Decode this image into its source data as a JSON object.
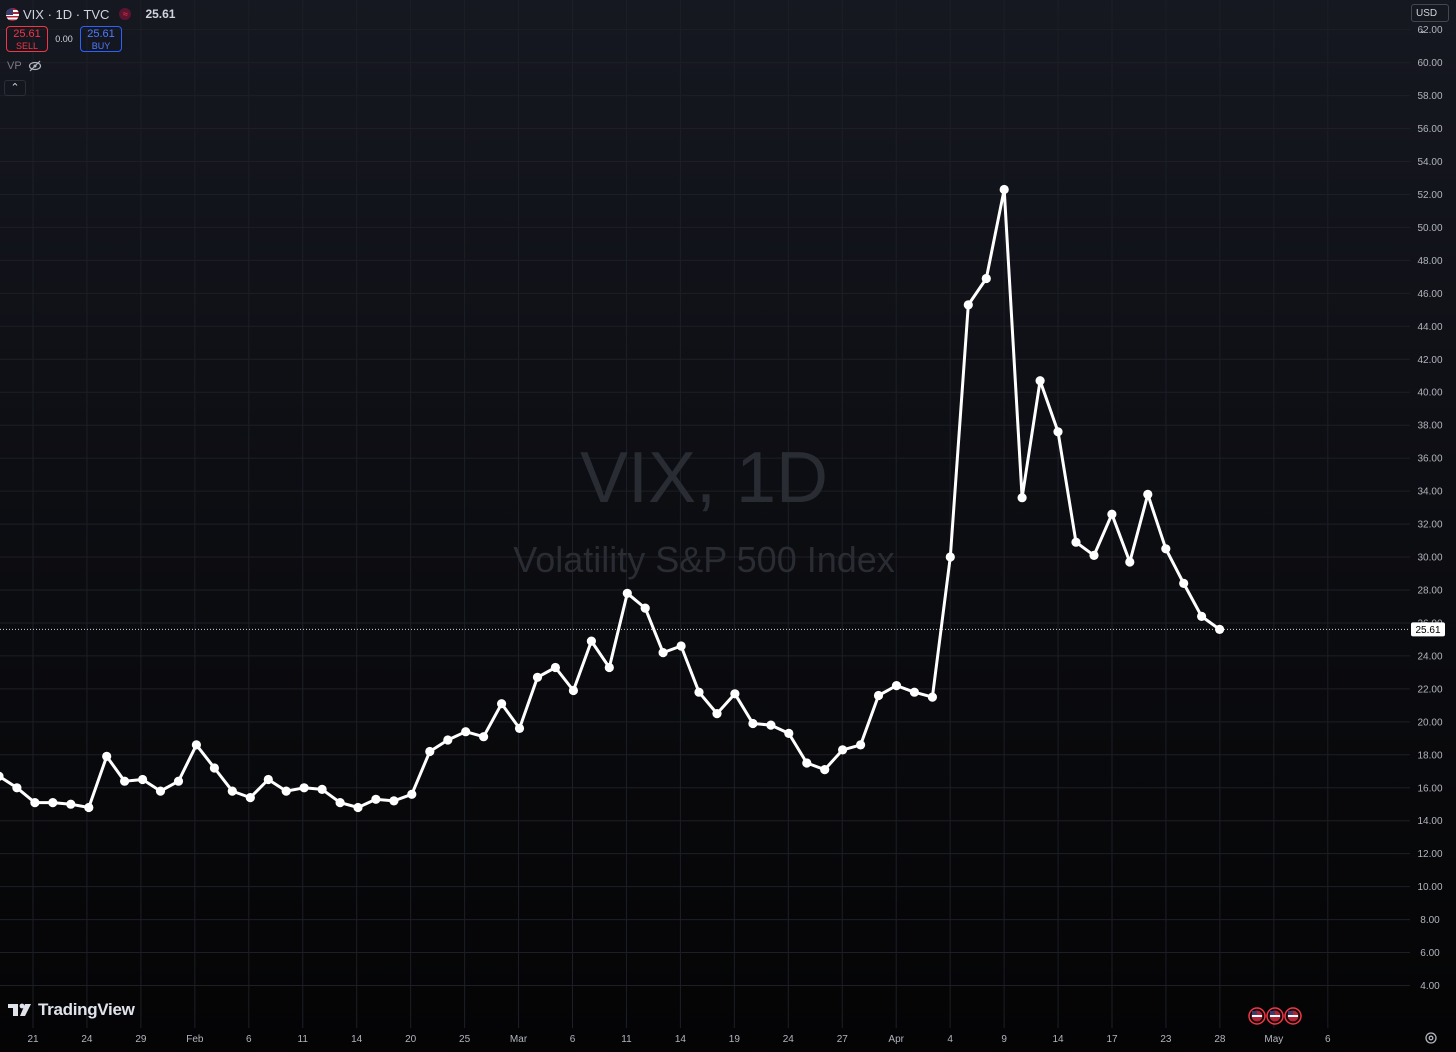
{
  "header": {
    "symbol_label": "VIX · 1D · TVC",
    "status_icon": "market-closed-icon",
    "last_price": "25.61",
    "sell_price": "25.61",
    "sell_label": "SELL",
    "spread": "0.00",
    "buy_price": "25.61",
    "buy_label": "BUY",
    "indicator": "VP",
    "indicator_icon": "eye-crossed-icon",
    "collapse_icon": "chevron-up-icon",
    "currency": "USD"
  },
  "watermark": {
    "title": "VIX, 1D",
    "subtitle": "Volatility S&P 500 Index"
  },
  "branding": {
    "name": "TradingView"
  },
  "colors": {
    "line": "#ffffff",
    "background_top": "#161821",
    "background_bottom": "#040405",
    "sell": "#f23645",
    "buy": "#2962ff"
  },
  "chart_data": {
    "type": "line",
    "title": "VIX, 1D",
    "subtitle": "Volatility S&P 500 Index",
    "ylim": [
      3.0,
      63.8
    ],
    "y_ticks": [
      "4.00",
      "6.00",
      "8.00",
      "10.00",
      "12.00",
      "14.00",
      "16.00",
      "18.00",
      "20.00",
      "22.00",
      "24.00",
      "26.00",
      "28.00",
      "30.00",
      "32.00",
      "34.00",
      "36.00",
      "38.00",
      "40.00",
      "42.00",
      "44.00",
      "46.00",
      "48.00",
      "50.00",
      "52.00",
      "54.00",
      "56.00",
      "58.00",
      "60.00",
      "62.00"
    ],
    "x_ticks": [
      "21",
      "24",
      "29",
      "Feb",
      "6",
      "11",
      "14",
      "20",
      "25",
      "Mar",
      "6",
      "11",
      "14",
      "19",
      "24",
      "27",
      "Apr",
      "4",
      "9",
      "14",
      "17",
      "23",
      "28",
      "May",
      "6"
    ],
    "grid": true,
    "last_value": "25.61",
    "series": [
      {
        "values": [
          16.7,
          16.0,
          15.1,
          15.1,
          15.0,
          14.8,
          17.9,
          16.4,
          16.5,
          15.8,
          16.4,
          18.6,
          17.2,
          15.8,
          15.4,
          16.5,
          15.8,
          16.0,
          15.9,
          15.1,
          14.8,
          15.3,
          15.2,
          15.6,
          18.2,
          18.9,
          19.4,
          19.1,
          21.1,
          19.6,
          22.7,
          23.3,
          21.9,
          24.9,
          23.3,
          27.8,
          26.9,
          24.2,
          24.6,
          21.8,
          20.5,
          21.7,
          19.9,
          19.8,
          19.3,
          17.5,
          17.1,
          18.3,
          18.6,
          21.6,
          22.2,
          21.8,
          21.5,
          30.0,
          45.3,
          46.9,
          52.3,
          33.6,
          40.7,
          37.6,
          30.9,
          30.1,
          32.6,
          29.7,
          33.8,
          30.5,
          28.4,
          26.4,
          25.61
        ]
      }
    ]
  },
  "footer": {
    "event_icons": [
      "us-flag-icon",
      "us-flag-icon",
      "us-flag-icon"
    ],
    "settings_icon": "gear-icon"
  }
}
